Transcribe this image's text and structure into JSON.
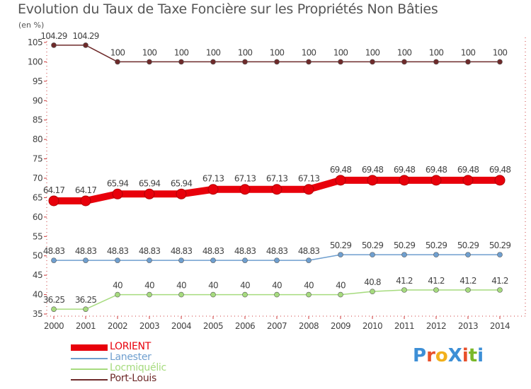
{
  "title": "Evolution du Taux de Taxe Foncière sur les Propriétés Non Bâties",
  "unit_label": "(en %)",
  "brand": "ProXiti",
  "chart_data": {
    "type": "line",
    "title": "Evolution du Taux de Taxe Foncière sur les Propriétés Non Bâties",
    "ylabel": "(en %)",
    "xlabel": "",
    "x": [
      "2000",
      "2001",
      "2002",
      "2003",
      "2004",
      "2005",
      "2006",
      "2007",
      "2008",
      "2009",
      "2010",
      "2011",
      "2012",
      "2013",
      "2014"
    ],
    "ylim": [
      35,
      105
    ],
    "yticks": [
      35,
      40,
      45,
      50,
      55,
      60,
      65,
      70,
      75,
      80,
      85,
      90,
      95,
      100,
      105
    ],
    "grid": false,
    "legend_position": "bottom-left",
    "series": [
      {
        "name": "LORIENT",
        "color": "#e8000b",
        "values": [
          64.17,
          64.17,
          65.94,
          65.94,
          65.94,
          67.13,
          67.13,
          67.13,
          67.13,
          69.48,
          69.48,
          69.48,
          69.48,
          69.48,
          69.48
        ],
        "labels": [
          "64.17",
          "64.17",
          "65.94",
          "65.94",
          "65.94",
          "67.13",
          "67.13",
          "67.13",
          "67.13",
          "69.48",
          "69.48",
          "69.48",
          "69.48",
          "69.48",
          "69.48"
        ]
      },
      {
        "name": "Lanester",
        "color": "#6f9fcf",
        "values": [
          48.83,
          48.83,
          48.83,
          48.83,
          48.83,
          48.83,
          48.83,
          48.83,
          48.83,
          50.29,
          50.29,
          50.29,
          50.29,
          50.29,
          50.29
        ],
        "labels": [
          "48.83",
          "48.83",
          "48.83",
          "48.83",
          "48.83",
          "48.83",
          "48.83",
          "48.83",
          "48.83",
          "50.29",
          "50.29",
          "50.29",
          "50.29",
          "50.29",
          "50.29"
        ]
      },
      {
        "name": "Locmiquélic",
        "color": "#a6db7e",
        "values": [
          36.25,
          36.25,
          40,
          40,
          40,
          40,
          40,
          40,
          40,
          40,
          40.8,
          41.2,
          41.2,
          41.2,
          41.2
        ],
        "labels": [
          "36.25",
          "36.25",
          "40",
          "40",
          "40",
          "40",
          "40",
          "40",
          "40",
          "40",
          "40.8",
          "41.2",
          "41.2",
          "41.2",
          "41.2"
        ]
      },
      {
        "name": "Port-Louis",
        "color": "#6e2a2a",
        "values": [
          104.29,
          104.29,
          100,
          100,
          100,
          100,
          100,
          100,
          100,
          100,
          100,
          100,
          100,
          100,
          100
        ],
        "labels": [
          "104.29",
          "104.29",
          "100",
          "100",
          "100",
          "100",
          "100",
          "100",
          "100",
          "100",
          "100",
          "100",
          "100",
          "100",
          "100"
        ]
      }
    ]
  }
}
